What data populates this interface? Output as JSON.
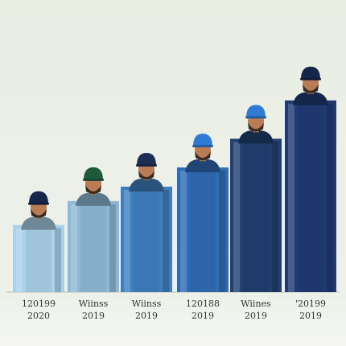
{
  "chart_data": {
    "type": "bar",
    "categories": [
      [
        "120199",
        "2020"
      ],
      [
        "Wiinss",
        "2019"
      ],
      [
        "Wiinss",
        "2019"
      ],
      [
        "120188",
        "2019"
      ],
      [
        "Wiines",
        "2019"
      ],
      [
        "'20199",
        "2019"
      ]
    ],
    "values": [
      1.4,
      1.9,
      2.2,
      2.6,
      3.2,
      4.0
    ],
    "ylim": [
      0,
      4.5
    ],
    "title": "",
    "xlabel": "",
    "ylabel": "",
    "grid": false,
    "colors": [
      "#a9d1ea",
      "#8fb8d6",
      "#3f7fc0",
      "#2f6cb4",
      "#213f70",
      "#213a74"
    ],
    "cap_colors": [
      "#16264a",
      "#1f5a3b",
      "#1c2e56",
      "#2f7bd4",
      "#2f7bd4",
      "#16264a"
    ]
  }
}
